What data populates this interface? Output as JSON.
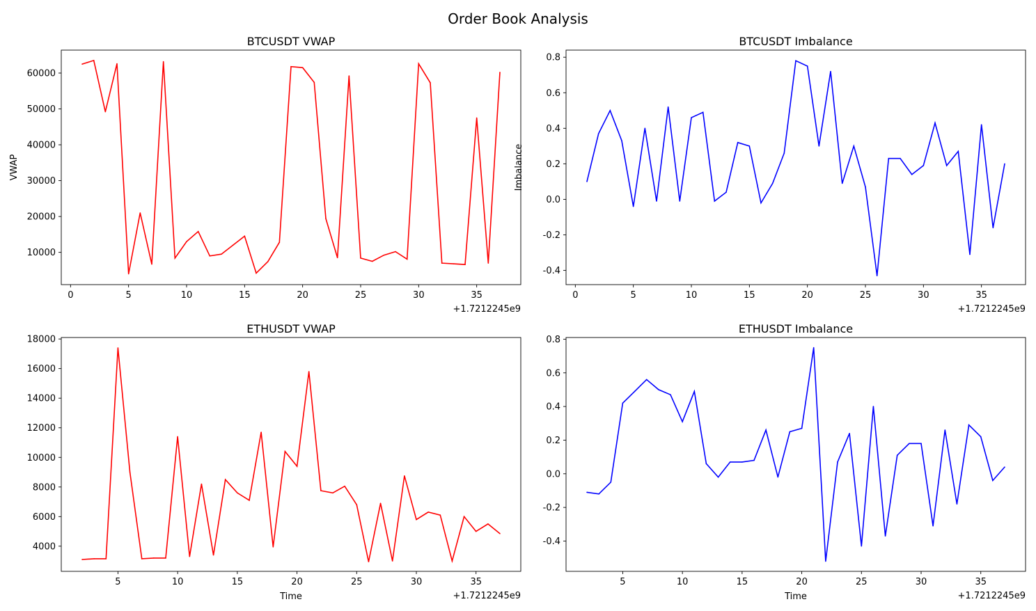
{
  "figure": {
    "title": "Order Book Analysis"
  },
  "chart_data": [
    {
      "type": "line",
      "title": "BTCUSDT VWAP",
      "xlabel": "",
      "ylabel": "VWAP",
      "x_offset_label": "+1.7212245e9",
      "color": "#ff0000",
      "xlim": [
        -0.8,
        38.8
      ],
      "ylim": [
        1000,
        66400
      ],
      "xticks": [
        0,
        5,
        10,
        15,
        20,
        25,
        30,
        35
      ],
      "yticks": [
        10000,
        20000,
        30000,
        40000,
        50000,
        60000
      ],
      "x": [
        1,
        2,
        3,
        4,
        5,
        6,
        7,
        8,
        9,
        10,
        11,
        12,
        13,
        14,
        15,
        16,
        17,
        18,
        19,
        20,
        21,
        22,
        23,
        24,
        25,
        26,
        27,
        28,
        29,
        30,
        31,
        32,
        33,
        34,
        35,
        36,
        37
      ],
      "y": [
        62500,
        63500,
        49200,
        62600,
        4000,
        21000,
        6700,
        63200,
        8400,
        13000,
        15800,
        9000,
        9500,
        12000,
        14500,
        4200,
        7400,
        12800,
        61800,
        61500,
        57400,
        19400,
        8500,
        59200,
        8400,
        7500,
        9200,
        10200,
        8100,
        62600,
        57300,
        7000,
        6800,
        6600,
        47500,
        7000,
        60200
      ]
    },
    {
      "type": "line",
      "title": "BTCUSDT Imbalance",
      "xlabel": "",
      "ylabel": "Imbalance",
      "x_offset_label": "+1.7212245e9",
      "color": "#0000ff",
      "xlim": [
        -0.8,
        38.8
      ],
      "ylim": [
        -0.48,
        0.84
      ],
      "xticks": [
        0,
        5,
        10,
        15,
        20,
        25,
        30,
        35
      ],
      "yticks": [
        -0.4,
        -0.2,
        0.0,
        0.2,
        0.4,
        0.6,
        0.8
      ],
      "x": [
        1,
        2,
        3,
        4,
        5,
        6,
        7,
        8,
        9,
        10,
        11,
        12,
        13,
        14,
        15,
        16,
        17,
        18,
        19,
        20,
        21,
        22,
        23,
        24,
        25,
        26,
        27,
        28,
        29,
        30,
        31,
        32,
        33,
        34,
        35,
        36,
        37
      ],
      "y": [
        0.1,
        0.37,
        0.5,
        0.33,
        -0.04,
        0.4,
        -0.01,
        0.52,
        -0.01,
        0.46,
        0.49,
        -0.01,
        0.04,
        0.32,
        0.3,
        -0.02,
        0.09,
        0.26,
        0.78,
        0.75,
        0.3,
        0.72,
        0.09,
        0.3,
        0.07,
        -0.43,
        0.23,
        0.23,
        0.14,
        0.19,
        0.43,
        0.19,
        0.27,
        -0.31,
        0.42,
        -0.16,
        0.2
      ]
    },
    {
      "type": "line",
      "title": "ETHUSDT VWAP",
      "xlabel": "Time",
      "ylabel": "",
      "x_offset_label": "+1.7212245e9",
      "color": "#ff0000",
      "xlim": [
        0.25,
        38.75
      ],
      "ylim": [
        2300,
        18100
      ],
      "xticks": [
        5,
        10,
        15,
        20,
        25,
        30,
        35
      ],
      "yticks": [
        4000,
        6000,
        8000,
        10000,
        12000,
        14000,
        16000,
        18000
      ],
      "x": [
        2,
        3,
        4,
        5,
        6,
        7,
        8,
        9,
        10,
        11,
        12,
        13,
        14,
        15,
        16,
        17,
        18,
        19,
        20,
        21,
        22,
        23,
        24,
        25,
        26,
        27,
        28,
        29,
        30,
        31,
        32,
        33,
        34,
        35,
        36,
        37
      ],
      "y": [
        3100,
        3150,
        3150,
        17400,
        9000,
        3150,
        3200,
        3200,
        11400,
        3300,
        8200,
        3400,
        8500,
        7600,
        7100,
        11700,
        3950,
        10400,
        9400,
        15800,
        7750,
        7600,
        8050,
        6800,
        2950,
        6900,
        3000,
        8750,
        5800,
        6300,
        6100,
        3000,
        6000,
        5000,
        5500,
        4850
      ]
    },
    {
      "type": "line",
      "title": "ETHUSDT Imbalance",
      "xlabel": "Time",
      "ylabel": "",
      "x_offset_label": "+1.7212245e9",
      "color": "#0000ff",
      "xlim": [
        0.25,
        38.75
      ],
      "ylim": [
        -0.58,
        0.81
      ],
      "xticks": [
        5,
        10,
        15,
        20,
        25,
        30,
        35
      ],
      "yticks": [
        -0.4,
        -0.2,
        0.0,
        0.2,
        0.4,
        0.6,
        0.8
      ],
      "x": [
        2,
        3,
        4,
        5,
        6,
        7,
        8,
        9,
        10,
        11,
        12,
        13,
        14,
        15,
        16,
        17,
        18,
        19,
        20,
        21,
        22,
        23,
        24,
        25,
        26,
        27,
        28,
        29,
        30,
        31,
        32,
        33,
        34,
        35,
        36,
        37
      ],
      "y": [
        -0.11,
        -0.12,
        -0.05,
        0.42,
        0.49,
        0.56,
        0.5,
        0.47,
        0.31,
        0.49,
        0.06,
        -0.02,
        0.07,
        0.07,
        0.08,
        0.26,
        -0.02,
        0.25,
        0.27,
        0.75,
        -0.52,
        0.07,
        0.24,
        -0.43,
        0.4,
        -0.37,
        0.11,
        0.18,
        0.18,
        -0.31,
        0.26,
        -0.18,
        0.29,
        0.22,
        -0.04,
        0.04
      ]
    }
  ]
}
